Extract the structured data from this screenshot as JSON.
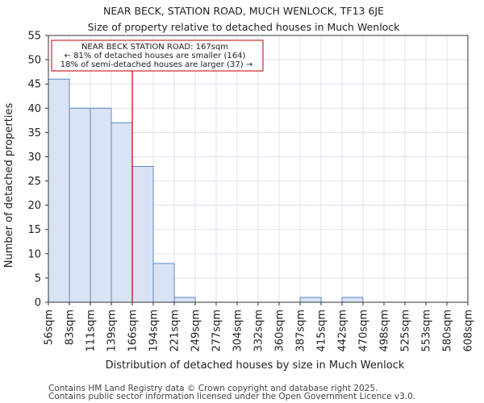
{
  "chart_data": {
    "type": "bar",
    "title_line1": "NEAR BECK, STATION ROAD, MUCH WENLOCK, TF13 6JE",
    "title_line2": "Size of property relative to detached houses in Much Wenlock",
    "xlabel": "Distribution of detached houses by size in Much Wenlock",
    "ylabel": "Number of detached properties",
    "bin_edges": [
      "56sqm",
      "83sqm",
      "111sqm",
      "139sqm",
      "166sqm",
      "194sqm",
      "221sqm",
      "249sqm",
      "277sqm",
      "304sqm",
      "332sqm",
      "360sqm",
      "387sqm",
      "415sqm",
      "442sqm",
      "470sqm",
      "498sqm",
      "525sqm",
      "553sqm",
      "580sqm",
      "608sqm"
    ],
    "values": [
      46,
      40,
      40,
      37,
      28,
      8,
      1,
      0,
      0,
      0,
      0,
      0,
      1,
      0,
      1,
      0,
      0,
      0,
      0,
      0
    ],
    "ylim": [
      0,
      55
    ],
    "yticks": [
      0,
      5,
      10,
      15,
      20,
      25,
      30,
      35,
      40,
      45,
      50,
      55
    ],
    "property_line_bin_position": 4.0,
    "annotation": {
      "line1": "NEAR BECK STATION ROAD: 167sqm",
      "line2": "← 81% of detached houses are smaller (164)",
      "line3": "18% of semi-detached houses are larger (37) →"
    },
    "colors": {
      "bar_fill": "#dae3f3",
      "bar_stroke": "#5b87c8",
      "grid": "#dde3ee",
      "marker": "#c00000"
    }
  },
  "footer": {
    "line1": "Contains HM Land Registry data © Crown copyright and database right 2025.",
    "line2": "Contains public sector information licensed under the Open Government Licence v3.0."
  }
}
